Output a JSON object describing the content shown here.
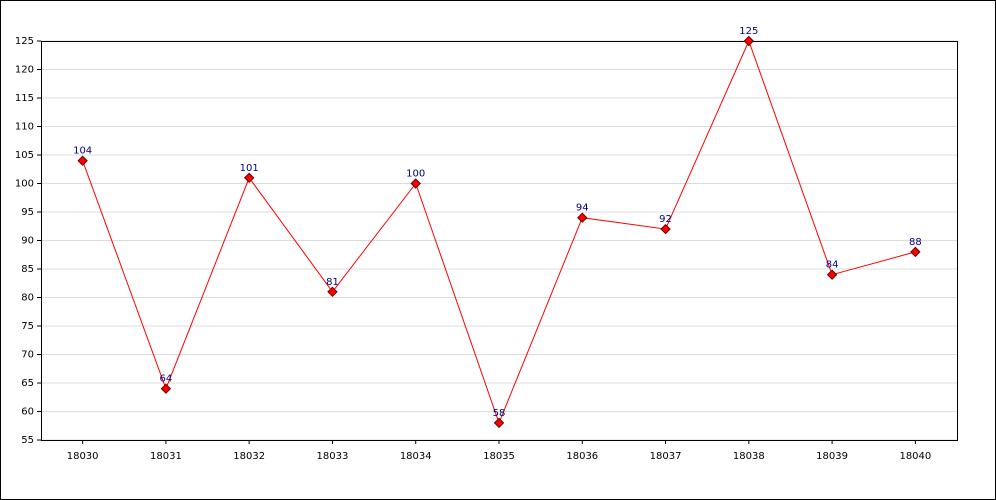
{
  "chart_data": {
    "type": "line",
    "categories": [
      "18030",
      "18031",
      "18032",
      "18033",
      "18034",
      "18035",
      "18036",
      "18037",
      "18038",
      "18039",
      "18040"
    ],
    "series": [
      {
        "color": "#ff0000",
        "values": [
          104,
          64,
          101,
          81,
          100,
          58,
          94,
          92,
          125,
          84,
          88
        ]
      }
    ],
    "ylim": [
      55,
      125
    ],
    "yticks": [
      55,
      60,
      65,
      70,
      75,
      80,
      85,
      90,
      95,
      100,
      105,
      110,
      115,
      120,
      125
    ],
    "grid": true
  }
}
